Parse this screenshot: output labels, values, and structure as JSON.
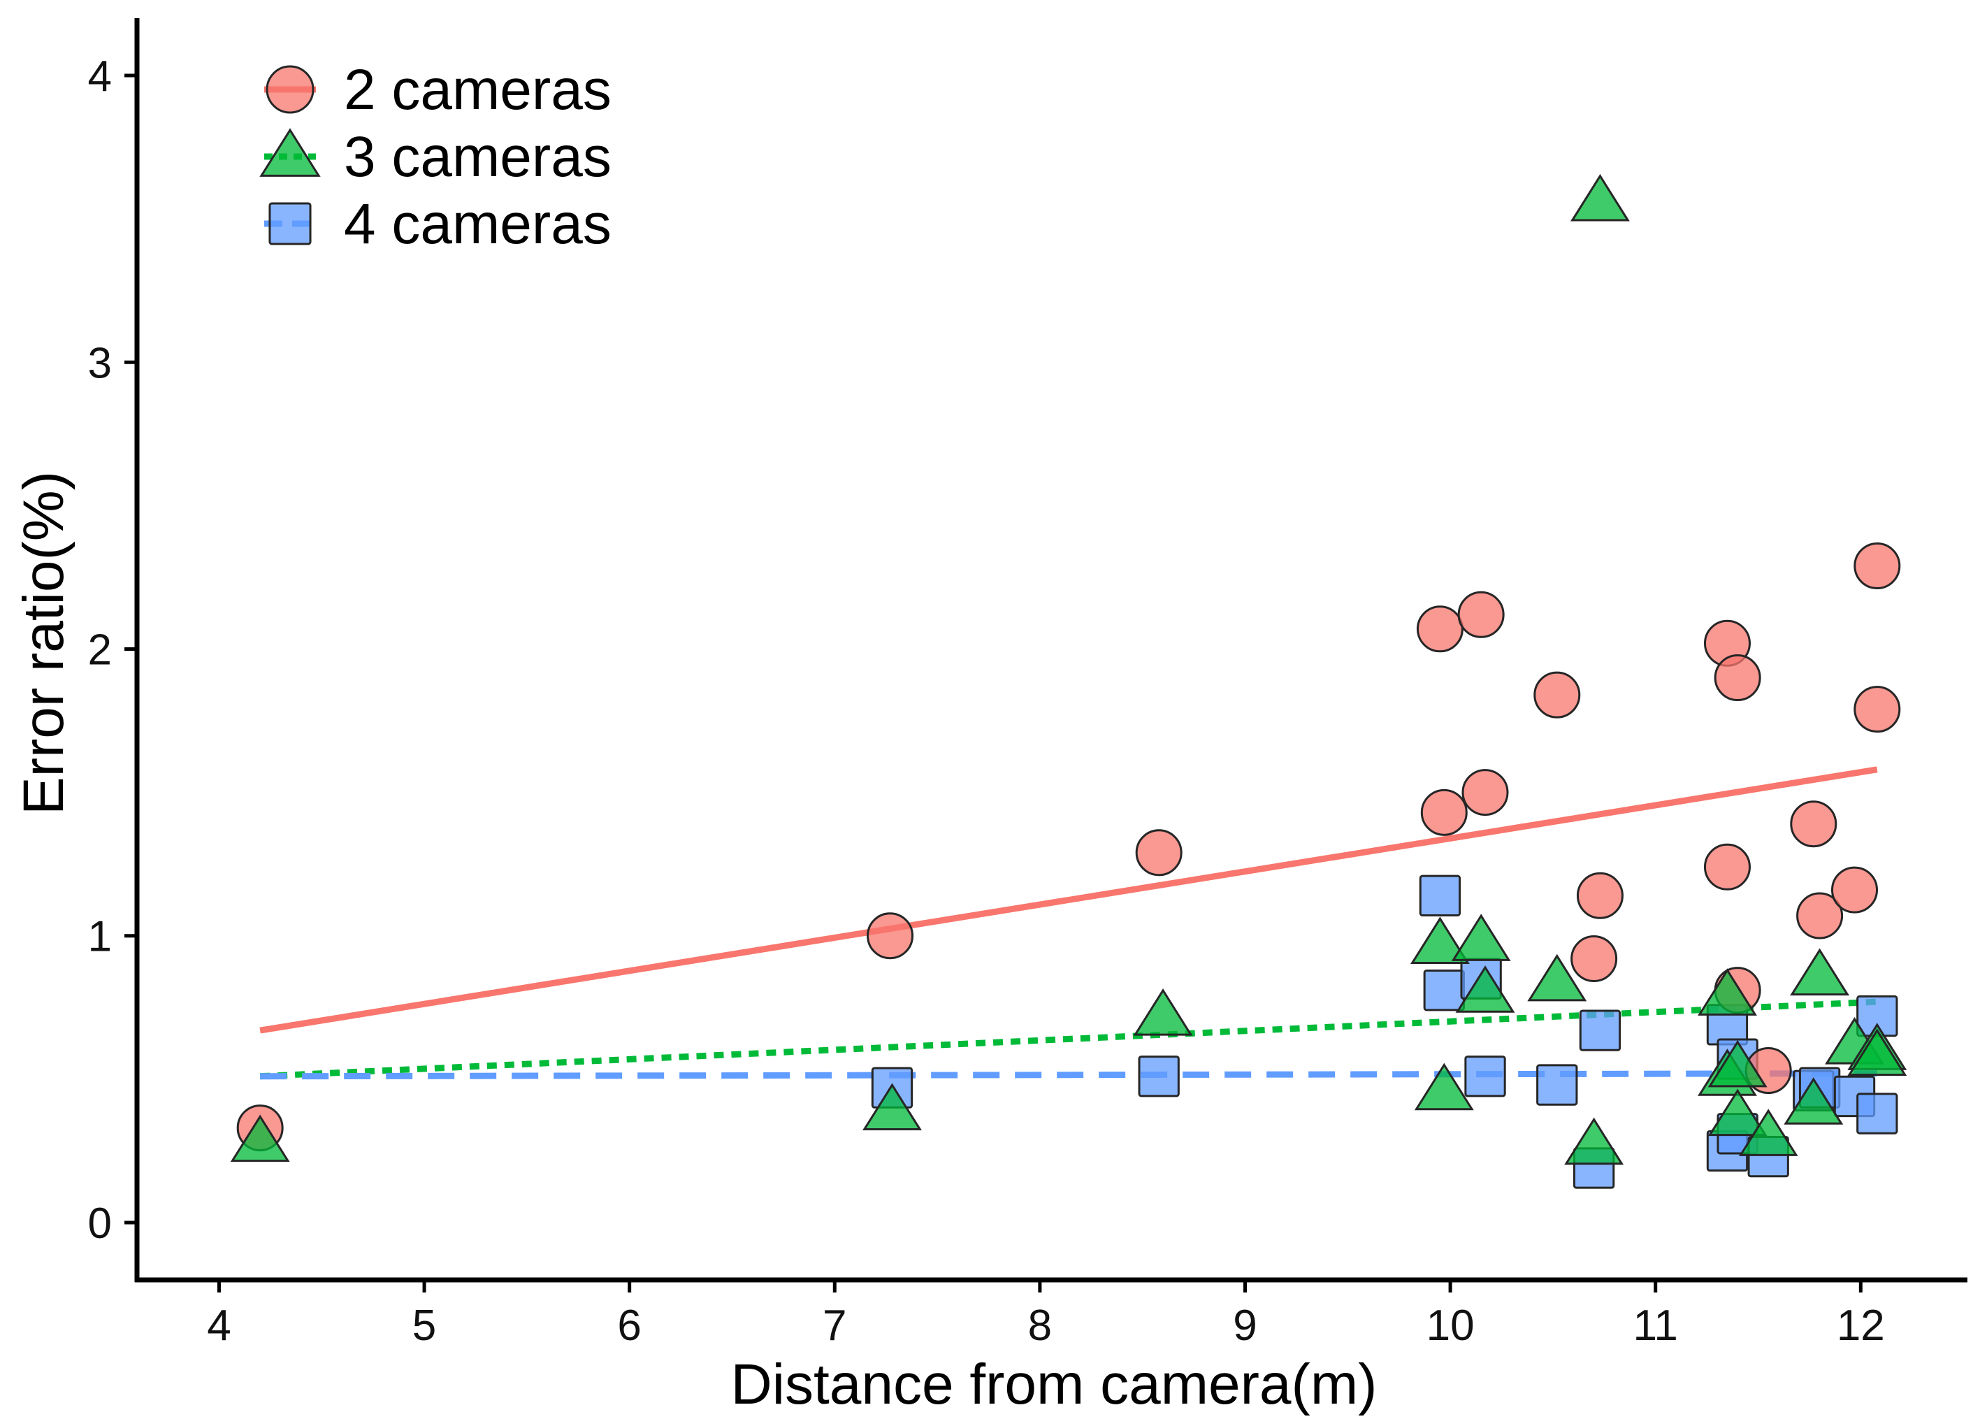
{
  "chart_data": {
    "type": "scatter",
    "xlabel": "Distance from camera(m)",
    "ylabel": "Error ratio(%)",
    "xlim": [
      3.6,
      12.52
    ],
    "ylim": [
      -0.2,
      4.2
    ],
    "x_ticks": [
      4,
      5,
      6,
      7,
      8,
      9,
      10,
      11,
      12
    ],
    "y_ticks": [
      0,
      1,
      2,
      3,
      4
    ],
    "grid": false,
    "legend_position": "top-left",
    "series": [
      {
        "name": "2 cameras",
        "marker": "circle",
        "line": "solid",
        "color": "#F8766D",
        "trend": [
          [
            4.2,
            0.67
          ],
          [
            12.08,
            1.58
          ]
        ],
        "points": [
          [
            4.2,
            0.33
          ],
          [
            7.27,
            1.0
          ],
          [
            8.58,
            1.29
          ],
          [
            9.95,
            2.07
          ],
          [
            9.97,
            1.43
          ],
          [
            10.15,
            2.12
          ],
          [
            10.17,
            1.5
          ],
          [
            10.52,
            1.84
          ],
          [
            10.7,
            0.92
          ],
          [
            10.73,
            1.14
          ],
          [
            11.35,
            2.02
          ],
          [
            11.35,
            1.24
          ],
          [
            11.4,
            1.9
          ],
          [
            11.4,
            0.81
          ],
          [
            11.55,
            0.53
          ],
          [
            11.77,
            1.39
          ],
          [
            11.8,
            1.07
          ],
          [
            11.97,
            1.16
          ],
          [
            12.08,
            2.29
          ],
          [
            12.08,
            1.79
          ]
        ]
      },
      {
        "name": "3 cameras",
        "marker": "triangle",
        "line": "dotted",
        "color": "#00BA38",
        "trend": [
          [
            4.2,
            0.51
          ],
          [
            12.08,
            0.77
          ]
        ],
        "points": [
          [
            4.2,
            0.28
          ],
          [
            7.28,
            0.39
          ],
          [
            8.6,
            0.72
          ],
          [
            9.95,
            0.97
          ],
          [
            9.97,
            0.46
          ],
          [
            10.15,
            0.98
          ],
          [
            10.17,
            0.8
          ],
          [
            10.52,
            0.84
          ],
          [
            10.7,
            0.27
          ],
          [
            10.73,
            3.56
          ],
          [
            11.35,
            0.79
          ],
          [
            11.35,
            0.51
          ],
          [
            11.4,
            0.37
          ],
          [
            11.4,
            0.54
          ],
          [
            11.55,
            0.3
          ],
          [
            11.77,
            0.41
          ],
          [
            11.8,
            0.86
          ],
          [
            11.97,
            0.62
          ],
          [
            12.08,
            0.6
          ],
          [
            12.08,
            0.58
          ]
        ]
      },
      {
        "name": "4 cameras",
        "marker": "square",
        "line": "dashed",
        "color": "#619CFF",
        "trend": [
          [
            4.2,
            0.51
          ],
          [
            12.08,
            0.52
          ]
        ],
        "points": [
          [
            7.28,
            0.47
          ],
          [
            8.58,
            0.51
          ],
          [
            9.95,
            1.14
          ],
          [
            9.97,
            0.81
          ],
          [
            10.15,
            0.85
          ],
          [
            10.17,
            0.51
          ],
          [
            10.52,
            0.48
          ],
          [
            10.7,
            0.19
          ],
          [
            10.73,
            0.67
          ],
          [
            11.35,
            0.69
          ],
          [
            11.35,
            0.25
          ],
          [
            11.4,
            0.57
          ],
          [
            11.4,
            0.31
          ],
          [
            11.55,
            0.23
          ],
          [
            11.77,
            0.46
          ],
          [
            11.8,
            0.47
          ],
          [
            11.97,
            0.44
          ],
          [
            12.08,
            0.72
          ],
          [
            12.08,
            0.38
          ]
        ]
      }
    ]
  }
}
